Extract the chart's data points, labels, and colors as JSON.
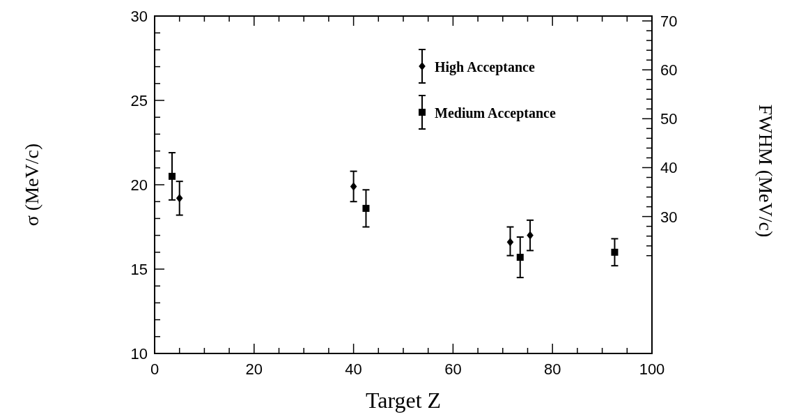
{
  "chart_data": {
    "type": "scatter",
    "xlabel": "Target Z",
    "ylabel": "σ (MeV/c)",
    "y2label": "FWHM (MeV/c)",
    "xlim": [
      0,
      100
    ],
    "ylim": [
      10,
      30
    ],
    "y2lim": [
      2,
      71
    ],
    "xticks": [
      0,
      {
        "value": 5,
        "label": null
      },
      {
        "value": 10,
        "label": null
      },
      {
        "value": 15,
        "label": null
      },
      20,
      {
        "value": 25,
        "label": null
      },
      {
        "value": 30,
        "label": null
      },
      {
        "value": 35,
        "label": null
      },
      40,
      {
        "value": 45,
        "label": null
      },
      {
        "value": 50,
        "label": null
      },
      {
        "value": 55,
        "label": null
      },
      60,
      {
        "value": 65,
        "label": null
      },
      {
        "value": 70,
        "label": null
      },
      {
        "value": 75,
        "label": null
      },
      80,
      {
        "value": 85,
        "label": null
      },
      {
        "value": 90,
        "label": null
      },
      {
        "value": 95,
        "label": null
      },
      100
    ],
    "yticks": [
      10,
      {
        "value": 11,
        "label": null
      },
      {
        "value": 12,
        "label": null
      },
      {
        "value": 13,
        "label": null
      },
      {
        "value": 14,
        "label": null
      },
      15,
      {
        "value": 16,
        "label": null
      },
      {
        "value": 17,
        "label": null
      },
      {
        "value": 18,
        "label": null
      },
      {
        "value": 19,
        "label": null
      },
      20,
      {
        "value": 21,
        "label": null
      },
      {
        "value": 22,
        "label": null
      },
      {
        "value": 23,
        "label": null
      },
      {
        "value": 24,
        "label": null
      },
      25,
      {
        "value": 26,
        "label": null
      },
      {
        "value": 27,
        "label": null
      },
      {
        "value": 28,
        "label": null
      },
      {
        "value": 29,
        "label": null
      },
      30
    ],
    "y2ticks": [
      {
        "value": 22,
        "label": null
      },
      {
        "value": 24,
        "label": null
      },
      {
        "value": 26,
        "label": null
      },
      {
        "value": 28,
        "label": null
      },
      30,
      {
        "value": 32,
        "label": null
      },
      {
        "value": 34,
        "label": null
      },
      {
        "value": 36,
        "label": null
      },
      {
        "value": 38,
        "label": null
      },
      40,
      {
        "value": 42,
        "label": null
      },
      {
        "value": 44,
        "label": null
      },
      {
        "value": 46,
        "label": null
      },
      {
        "value": 48,
        "label": null
      },
      50,
      {
        "value": 52,
        "label": null
      },
      {
        "value": 54,
        "label": null
      },
      {
        "value": 56,
        "label": null
      },
      {
        "value": 58,
        "label": null
      },
      60,
      {
        "value": 62,
        "label": null
      },
      {
        "value": 64,
        "label": null
      },
      {
        "value": 66,
        "label": null
      },
      {
        "value": 68,
        "label": null
      },
      70
    ],
    "legend": "top right",
    "grid": false,
    "series": [
      {
        "name": "High Acceptance",
        "color": "#000000",
        "marker": "diamond",
        "x": [
          5,
          40,
          71.5,
          75.5
        ],
        "values": [
          19.2,
          19.9,
          16.6,
          17.0
        ],
        "errors": [
          [
            18.2,
            20.2
          ],
          [
            19.0,
            20.8
          ],
          [
            15.8,
            17.5
          ],
          [
            16.1,
            17.9
          ]
        ]
      },
      {
        "name": "Medium Acceptance",
        "color": "#000000",
        "marker": "square",
        "x": [
          3.5,
          42.5,
          73.5,
          92.5
        ],
        "values": [
          20.5,
          18.6,
          15.7,
          16.0
        ],
        "errors": [
          [
            19.1,
            21.9
          ],
          [
            17.5,
            19.7
          ],
          [
            14.5,
            16.9
          ],
          [
            15.2,
            16.8
          ]
        ]
      }
    ]
  }
}
